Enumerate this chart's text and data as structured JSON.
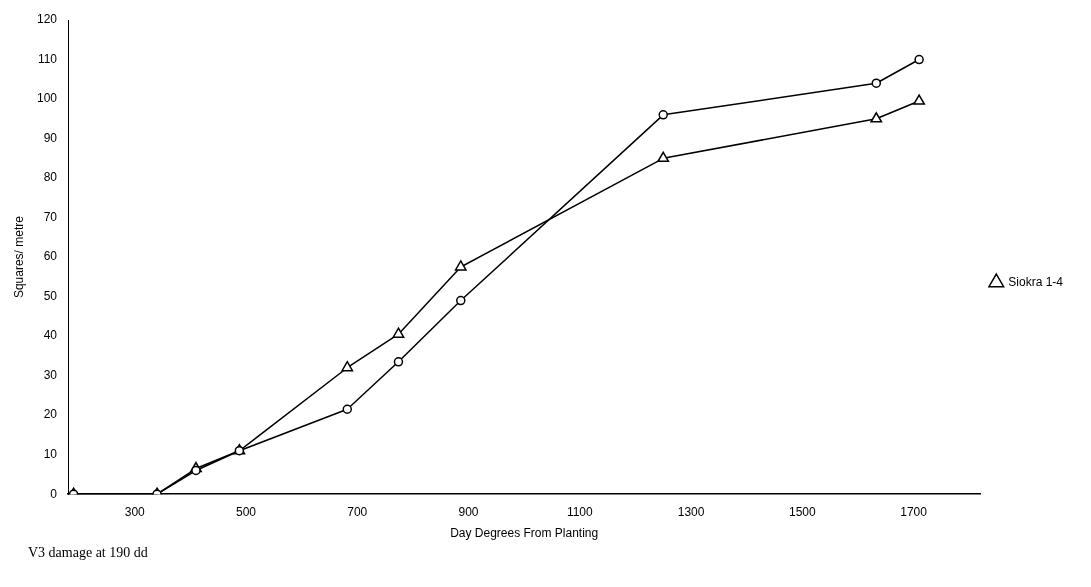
{
  "chart_data": {
    "type": "line",
    "xlabel": "Day Degrees From Planting",
    "ylabel": "Squares/ metre",
    "annotations": [
      "V3 damage at 190 dd"
    ],
    "x": [
      190,
      340,
      410,
      488,
      682,
      774,
      886,
      1250,
      1633,
      1710
    ],
    "series": [
      {
        "color": "#000000",
        "marker": "circle",
        "values": [
          0,
          0,
          6,
          11,
          21.5,
          33.5,
          49,
          96,
          104,
          110
        ]
      },
      {
        "name": "Siokra 1-4",
        "color": "#000000",
        "marker": "triangle",
        "values": [
          0,
          0,
          6.5,
          11,
          32,
          40.5,
          57.5,
          85,
          95,
          99.5
        ]
      }
    ],
    "xlim": [
      180,
      1820
    ],
    "xticks": [
      300,
      500,
      700,
      900,
      1100,
      1300,
      1500,
      1700
    ],
    "ylim": [
      0,
      120
    ],
    "yticks": [
      0,
      10,
      20,
      30,
      40,
      50,
      60,
      70,
      80,
      90,
      100,
      110,
      120
    ],
    "grid": false,
    "legend": "right",
    "line_style": "solid"
  }
}
